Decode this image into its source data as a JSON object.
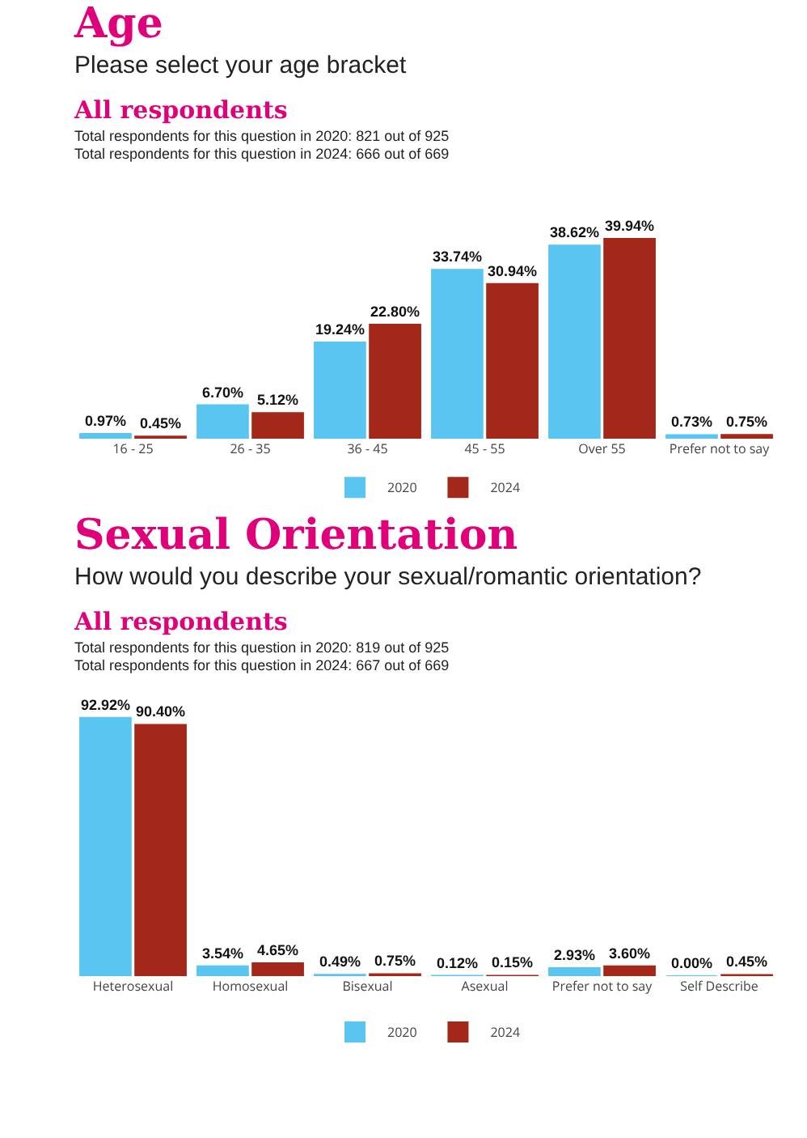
{
  "chart_data": [
    {
      "type": "bar",
      "title": "Age",
      "subtitle": "Please select your age bracket",
      "annotations": [
        "All respondents",
        "Total respondents for this question in 2020: 821 out of 925",
        "Total respondents for this question in 2024: 666 out of 669"
      ],
      "categories": [
        "16 - 25",
        "26 - 35",
        "36 - 45",
        "45 - 55",
        "Over 55",
        "Prefer not to say"
      ],
      "series": [
        {
          "name": "2020",
          "color": "#5bc5f2",
          "values": [
            0.97,
            6.7,
            19.24,
            33.74,
            38.62,
            0.73
          ],
          "value_labels": [
            "0.97%",
            "6.70%",
            "19.24%",
            "33.74%",
            "38.62%",
            "0.73%"
          ]
        },
        {
          "name": "2024",
          "color": "#a3281a",
          "values": [
            0.45,
            5.12,
            22.8,
            30.94,
            39.94,
            0.75
          ],
          "value_labels": [
            "0.45%",
            "5.12%",
            "22.80%",
            "30.94%",
            "39.94%",
            "0.75%"
          ]
        }
      ],
      "legend": "bottom",
      "grid": false
    },
    {
      "type": "bar",
      "title": "Sexual Orientation",
      "subtitle": "How would you describe your sexual/romantic orientation?",
      "annotations": [
        "All respondents",
        "Total respondents for this question in 2020: 819 out of 925",
        "Total respondents for this question in 2024: 667 out of 669"
      ],
      "categories": [
        "Heterosexual",
        "Homosexual",
        "Bisexual",
        "Asexual",
        "Prefer not to say",
        "Self Describe"
      ],
      "series": [
        {
          "name": "2020",
          "color": "#5bc5f2",
          "values": [
            92.92,
            3.54,
            0.49,
            0.12,
            2.93,
            0.0
          ],
          "value_labels": [
            "92.92%",
            "3.54%",
            "0.49%",
            "0.12%",
            "2.93%",
            "0.00%"
          ]
        },
        {
          "name": "2024",
          "color": "#a3281a",
          "values": [
            90.4,
            4.65,
            0.75,
            0.15,
            3.6,
            0.45
          ],
          "value_labels": [
            "90.40%",
            "4.65%",
            "0.75%",
            "0.15%",
            "3.60%",
            "0.45%"
          ]
        }
      ],
      "legend": "bottom",
      "grid": false
    }
  ]
}
